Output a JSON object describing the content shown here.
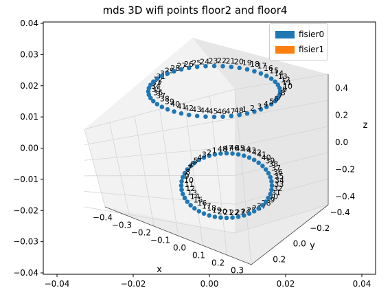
{
  "chart_data": {
    "type": "scatter",
    "title": "mds 3D wifi points floor2 and floor4",
    "xlabel": "x",
    "ylabel": "y",
    "zlabel": "z",
    "colors": {
      "fisier0": "#1f77b4",
      "fisier1": "#ff7f0e"
    },
    "legend": {
      "placement": "top-right",
      "entries": [
        "fisier0",
        "fisier1"
      ]
    },
    "grid": true,
    "outer_ticks": {
      "x": [
        "−0.04",
        "−0.02",
        "0.00",
        "0.02",
        "0.04"
      ],
      "y": [
        "0.04",
        "0.03",
        "0.02",
        "0.01",
        "0.00",
        "−0.01",
        "−0.02",
        "−0.03",
        "−0.04"
      ]
    },
    "axis3d_ticks": {
      "x": [
        "−0.4",
        "−0.3",
        "−0.2",
        "−0.1",
        "0.0",
        "0.1",
        "0.2",
        "0.3"
      ],
      "y": [
        "−0.4",
        "−0.2",
        "0.0",
        "0.2"
      ],
      "z": [
        "−0.4",
        "−0.2",
        "0.0",
        "0.2",
        "0.4"
      ]
    },
    "series": [
      {
        "name": "fisier0",
        "upper_ring": [
          {
            "label": "22"
          },
          {
            "label": "21"
          },
          {
            "label": "20"
          },
          {
            "label": "19"
          },
          {
            "label": "18"
          },
          {
            "label": "17"
          },
          {
            "label": "16"
          },
          {
            "label": "15"
          },
          {
            "label": "14"
          },
          {
            "label": "13"
          },
          {
            "label": "12"
          },
          {
            "label": "11"
          },
          {
            "label": "10"
          },
          {
            "label": "9"
          },
          {
            "label": "8"
          },
          {
            "label": "7"
          },
          {
            "label": "6"
          },
          {
            "label": "5"
          },
          {
            "label": "4"
          },
          {
            "label": "3"
          },
          {
            "label": "2"
          },
          {
            "label": "1"
          },
          {
            "label": "48"
          },
          {
            "label": "47"
          },
          {
            "label": "46"
          },
          {
            "label": "45"
          },
          {
            "label": "44"
          },
          {
            "label": "43"
          },
          {
            "label": "42"
          },
          {
            "label": "41"
          },
          {
            "label": "40"
          },
          {
            "label": "39"
          },
          {
            "label": "38"
          },
          {
            "label": "37"
          },
          {
            "label": "36"
          },
          {
            "label": "35"
          },
          {
            "label": "34"
          },
          {
            "label": "33"
          },
          {
            "label": "32"
          },
          {
            "label": "31"
          },
          {
            "label": "30"
          },
          {
            "label": "29"
          },
          {
            "label": "28"
          },
          {
            "label": "27"
          },
          {
            "label": "26"
          },
          {
            "label": "25"
          },
          {
            "label": "24"
          },
          {
            "label": "23"
          }
        ],
        "lower_ring": [
          {
            "label": "22"
          },
          {
            "label": "23"
          },
          {
            "label": "24"
          },
          {
            "label": "25"
          },
          {
            "label": "26"
          },
          {
            "label": "27"
          },
          {
            "label": "28"
          },
          {
            "label": "29"
          },
          {
            "label": "30"
          },
          {
            "label": "31"
          },
          {
            "label": "32"
          },
          {
            "label": "33"
          },
          {
            "label": "34"
          },
          {
            "label": "35"
          },
          {
            "label": "36"
          },
          {
            "label": "37"
          },
          {
            "label": "38"
          },
          {
            "label": "39"
          },
          {
            "label": "40"
          },
          {
            "label": "41"
          },
          {
            "label": "42"
          },
          {
            "label": "43"
          },
          {
            "label": "44"
          },
          {
            "label": "45"
          },
          {
            "label": "46"
          },
          {
            "label": "47"
          },
          {
            "label": "48"
          },
          {
            "label": "1"
          },
          {
            "label": "2"
          },
          {
            "label": "3"
          },
          {
            "label": "4"
          },
          {
            "label": "5"
          },
          {
            "label": "6"
          },
          {
            "label": "7"
          },
          {
            "label": "8"
          },
          {
            "label": "9"
          },
          {
            "label": "10"
          },
          {
            "label": "11"
          },
          {
            "label": "12"
          },
          {
            "label": "13"
          },
          {
            "label": "14"
          },
          {
            "label": "15"
          },
          {
            "label": "16"
          },
          {
            "label": "17"
          },
          {
            "label": "18"
          },
          {
            "label": "19"
          },
          {
            "label": "20"
          },
          {
            "label": "21"
          }
        ]
      },
      {
        "name": "fisier1",
        "upper_ring": [],
        "lower_ring": []
      }
    ]
  }
}
